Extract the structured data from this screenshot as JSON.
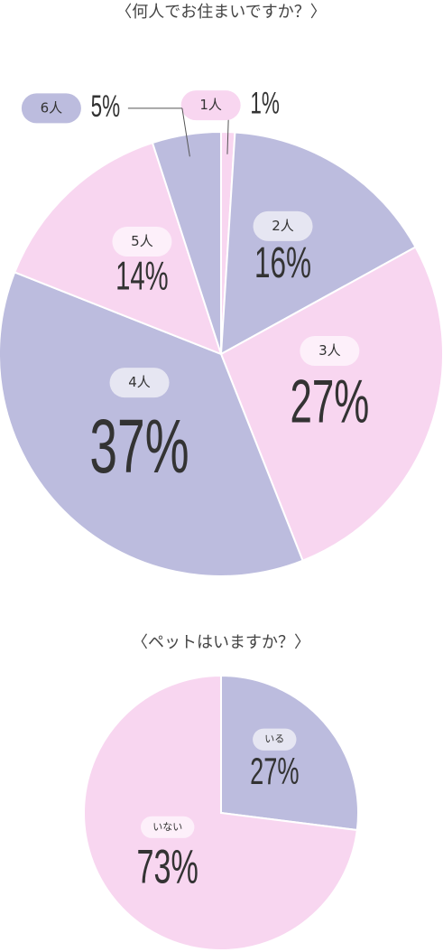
{
  "chart_data": [
    {
      "type": "pie",
      "title": "〈何人でお住まいですか？〉",
      "categories": [
        "1人",
        "2人",
        "3人",
        "4人",
        "5人",
        "6人"
      ],
      "values": [
        1,
        16,
        27,
        37,
        14,
        5
      ],
      "value_labels": [
        "1%",
        "16%",
        "27%",
        "37%",
        "14%",
        "5%"
      ],
      "colors": [
        "#f8d6f0",
        "#bcbcde",
        "#f8d6f0",
        "#bcbcde",
        "#f8d6f0",
        "#bcbcde"
      ]
    },
    {
      "type": "pie",
      "title": "〈ペットはいますか？〉",
      "categories": [
        "いる",
        "いない"
      ],
      "values": [
        27,
        73
      ],
      "value_labels": [
        "27%",
        "73%"
      ],
      "colors": [
        "#bcbcde",
        "#f8d6f0"
      ]
    }
  ]
}
